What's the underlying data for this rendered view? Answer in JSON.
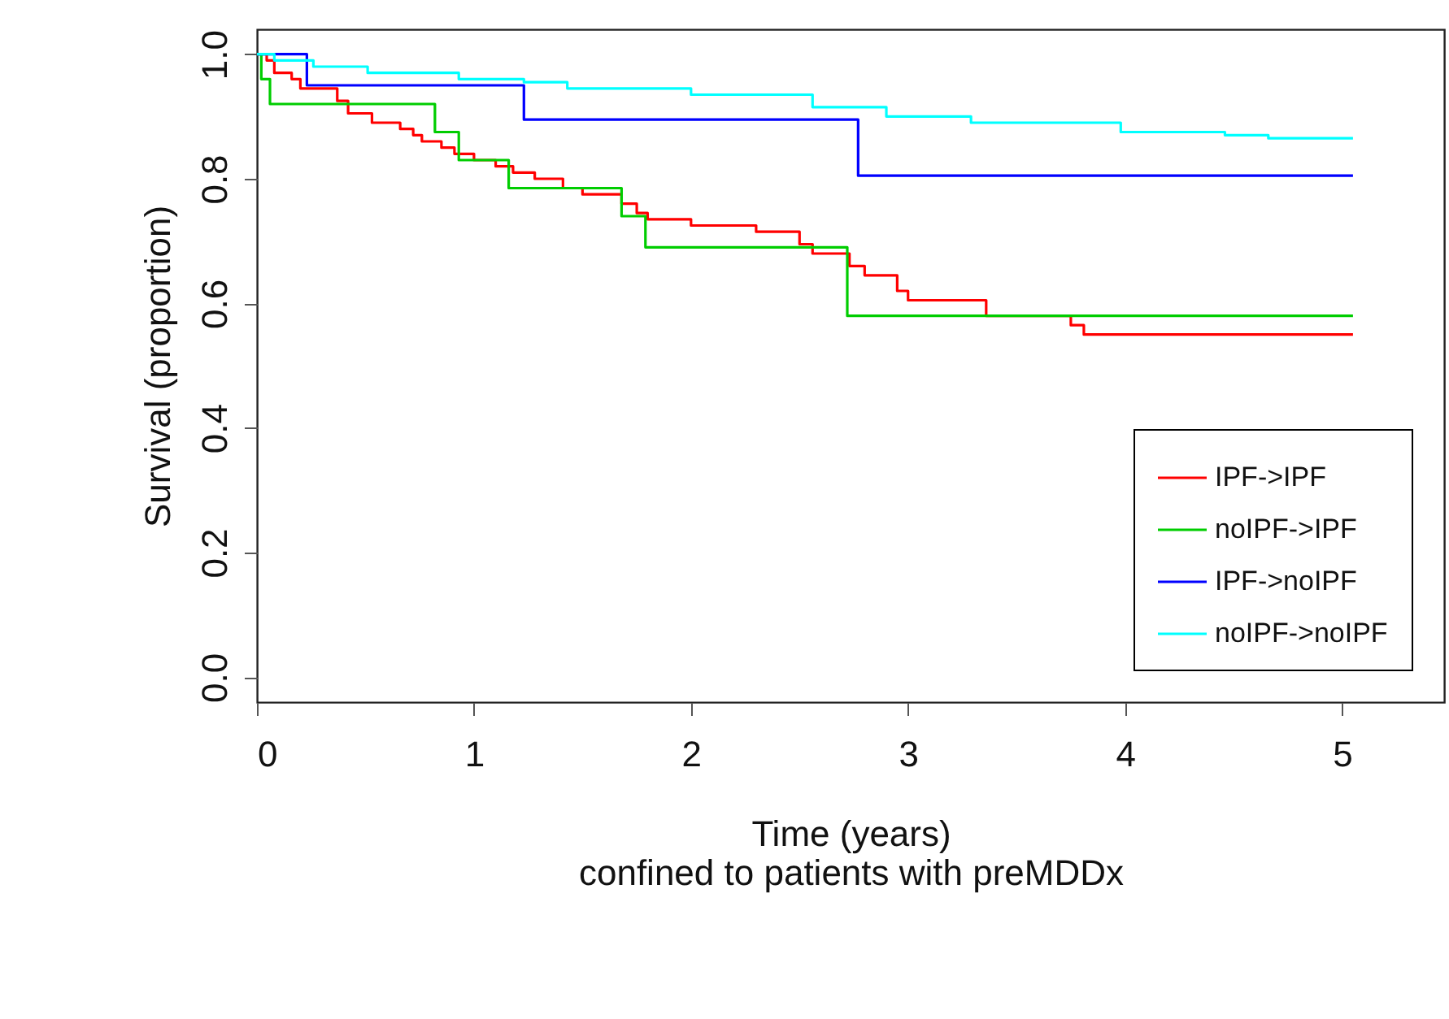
{
  "chart_data": {
    "type": "step",
    "xlabel": "Time (years)",
    "ylabel": "Survival (proportion)",
    "annotations": [
      "confined to patients with preMDDx"
    ],
    "xlim": [
      0,
      5.47
    ],
    "xticks": [
      0,
      1,
      2,
      3,
      4,
      5
    ],
    "ylim": [
      -0.04,
      1.04
    ],
    "yticks": [
      {
        "value": 0,
        "label": "0.0"
      },
      0.2,
      0.4,
      0.6,
      0.8,
      {
        "value": 1,
        "label": "1.0"
      }
    ],
    "grid": false,
    "legend": "bottom right",
    "line_style": "solid",
    "series": [
      {
        "name": "IPF->IPF",
        "color": "#ff0000",
        "x": [
          0,
          0.045,
          0.08,
          0.16,
          0.2,
          0.37,
          0.42,
          0.53,
          0.66,
          0.72,
          0.76,
          0.85,
          0.91,
          1.0,
          1.1,
          1.18,
          1.28,
          1.41,
          1.5,
          1.68,
          1.75,
          1.8,
          2.0,
          2.3,
          2.5,
          2.56,
          2.73,
          2.8,
          2.95,
          3.0,
          3.36,
          3.75,
          3.81,
          5.05
        ],
        "values": [
          1.0,
          0.99,
          0.97,
          0.96,
          0.945,
          0.925,
          0.905,
          0.89,
          0.88,
          0.87,
          0.86,
          0.85,
          0.84,
          0.83,
          0.82,
          0.81,
          0.8,
          0.785,
          0.775,
          0.76,
          0.745,
          0.735,
          0.725,
          0.715,
          0.695,
          0.68,
          0.66,
          0.645,
          0.62,
          0.605,
          0.58,
          0.565,
          0.55,
          0.55
        ]
      },
      {
        "name": "noIPF->IPF",
        "color": "#00cd00",
        "x": [
          0,
          0.02,
          0.06,
          0.82,
          0.93,
          1.16,
          1.68,
          1.79,
          2.72,
          5.05
        ],
        "values": [
          1.0,
          0.96,
          0.92,
          0.875,
          0.83,
          0.785,
          0.74,
          0.69,
          0.58,
          0.58
        ]
      },
      {
        "name": "IPF->noIPF",
        "color": "#0000ff",
        "x": [
          0,
          0.23,
          1.23,
          2.77,
          5.05
        ],
        "values": [
          1.0,
          0.95,
          0.895,
          0.805,
          0.805
        ]
      },
      {
        "name": "noIPF->noIPF",
        "color": "#00ffff",
        "x": [
          0,
          0.08,
          0.26,
          0.51,
          0.93,
          1.23,
          1.43,
          2.0,
          2.56,
          2.9,
          3.29,
          3.98,
          4.46,
          4.66,
          5.05
        ],
        "values": [
          1.0,
          0.99,
          0.98,
          0.97,
          0.96,
          0.955,
          0.945,
          0.935,
          0.915,
          0.9,
          0.89,
          0.875,
          0.87,
          0.865,
          0.865
        ]
      }
    ]
  }
}
